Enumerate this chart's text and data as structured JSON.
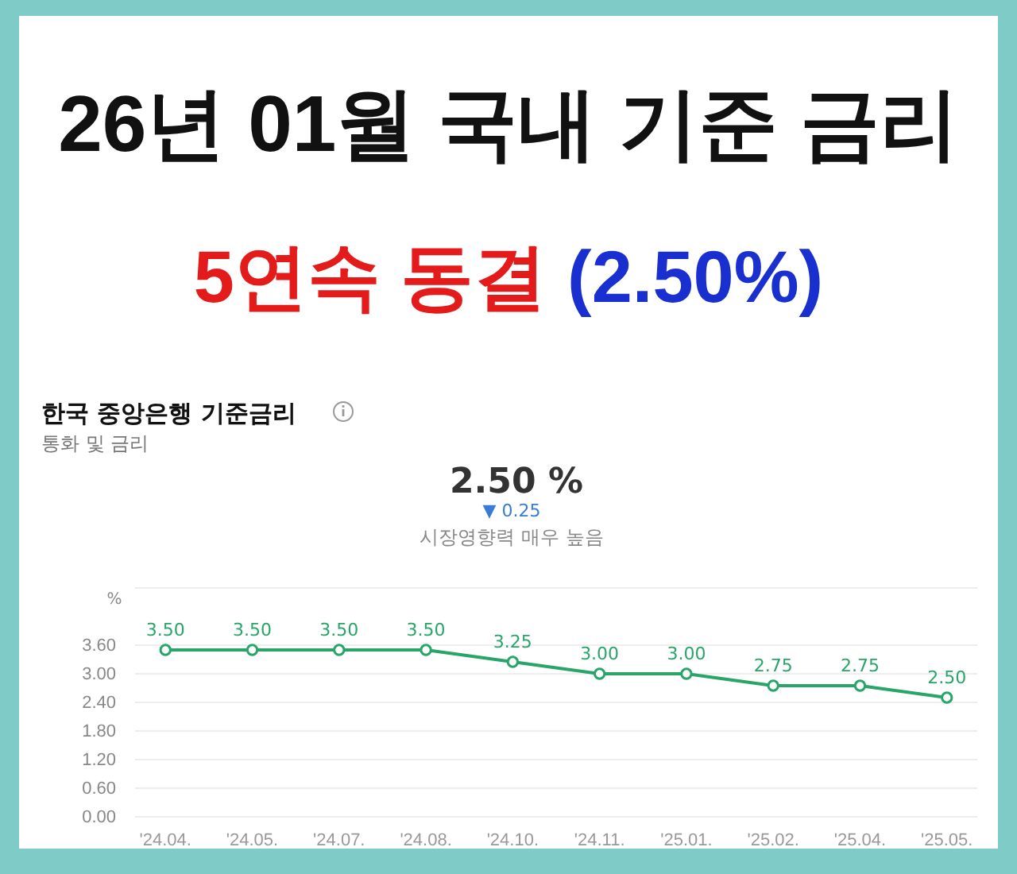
{
  "chart_data": {
    "type": "line",
    "title": "26년 01월 국내 기준 금리",
    "subtitle": "5연속 동결 (2.50%)",
    "ylabel": "%",
    "annotations": [
      "한국 중앙은행 기준금리",
      "통화 및 금리",
      "2.50 %",
      "▼ 0.25",
      "시장영향력 매우 높음"
    ],
    "categories": [
      "'24.04.",
      "'24.05.",
      "'24.07.",
      "'24.08.",
      "'24.10.",
      "'24.11.",
      "'25.01.",
      "'25.02.",
      "'25.04.",
      "'25.05."
    ],
    "series": [
      {
        "color": "#2aa56a",
        "values": [
          3.5,
          3.5,
          3.5,
          3.5,
          3.25,
          3.0,
          3.0,
          2.75,
          2.75,
          2.5
        ],
        "value_labels": [
          "3.50",
          "3.50",
          "3.50",
          "3.50",
          "3.25",
          "3.00",
          "3.00",
          "2.75",
          "2.75",
          "2.50"
        ]
      }
    ],
    "ylim": [
      0,
      4.8
    ],
    "yticks": [
      {
        "value": 0,
        "label": "0.00"
      },
      {
        "value": 0.6,
        "label": "0.60"
      },
      {
        "value": 1.2,
        "label": "1.20"
      },
      {
        "value": 1.8,
        "label": "1.80"
      },
      {
        "value": 2.4,
        "label": "2.40"
      },
      {
        "value": 3.0,
        "label": "3.00"
      },
      {
        "value": 3.6,
        "label": "3.60"
      }
    ],
    "grid": "y",
    "marker": "circle",
    "line_style": "solid"
  }
}
